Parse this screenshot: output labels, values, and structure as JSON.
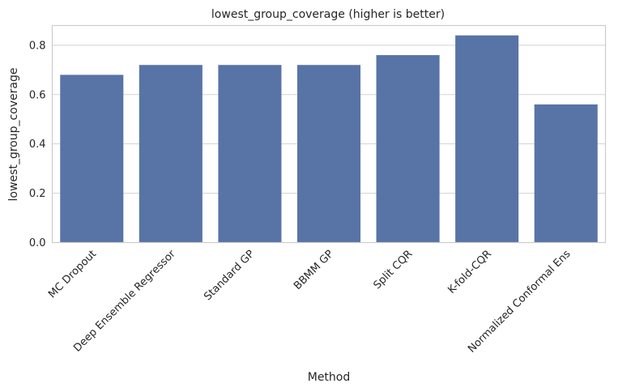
{
  "chart_data": {
    "type": "bar",
    "title": "lowest_group_coverage (higher is better)",
    "xlabel": "Method",
    "ylabel": "lowest_group_coverage",
    "categories": [
      "MC Dropout",
      "Deep Ensemble Regressor",
      "Standard GP",
      "BBMM GP",
      "Split CQR",
      "K-fold-CQR",
      "Normalized Conformal Ens"
    ],
    "values": [
      0.68,
      0.72,
      0.72,
      0.72,
      0.76,
      0.84,
      0.56
    ],
    "ylim": [
      0,
      0.88
    ],
    "yticks": [
      0.0,
      0.2,
      0.4,
      0.6,
      0.8
    ],
    "ytick_labels": [
      "0.0",
      "0.2",
      "0.4",
      "0.6",
      "0.8"
    ],
    "grid": "horizontal",
    "bar_color": "#5874a6",
    "background": "#ffffff"
  }
}
